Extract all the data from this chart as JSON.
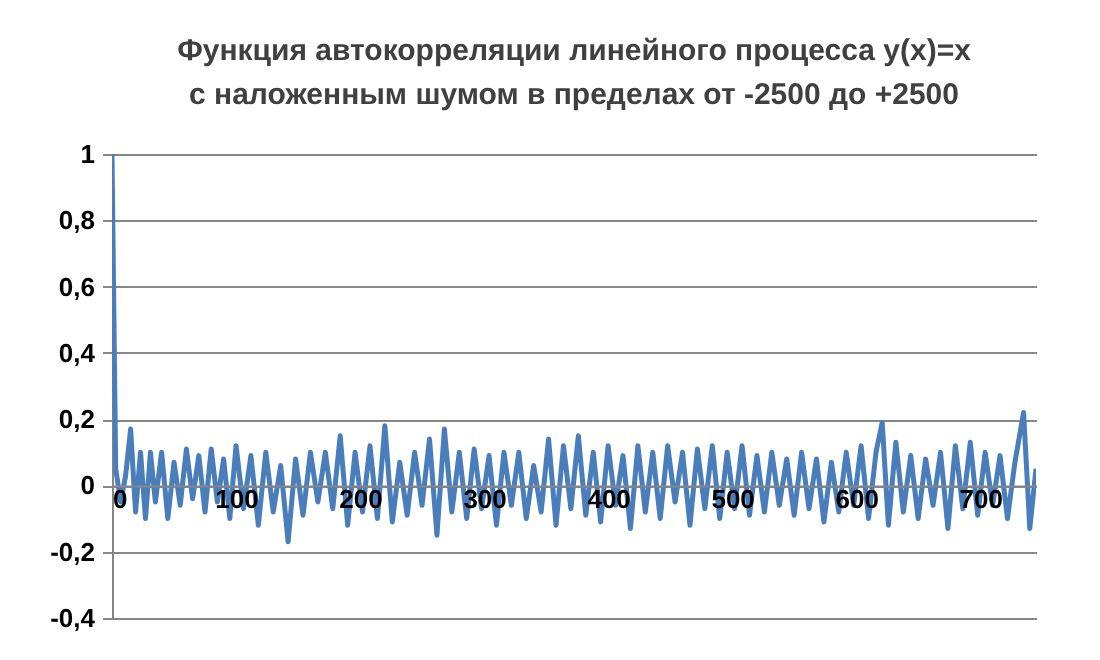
{
  "chart_data": {
    "type": "line",
    "title": "Функция автокорреляции линейного процесса y(x)=x\nс наложенным шумом в пределах от -2500 до +2500",
    "x": [
      0,
      3,
      7,
      11,
      15,
      19,
      23,
      27,
      31,
      35,
      40,
      45,
      50,
      55,
      60,
      65,
      70,
      75,
      80,
      85,
      90,
      95,
      100,
      106,
      112,
      118,
      124,
      130,
      136,
      142,
      148,
      154,
      160,
      166,
      172,
      178,
      184,
      190,
      196,
      202,
      208,
      214,
      220,
      226,
      232,
      238,
      244,
      250,
      256,
      262,
      268,
      274,
      280,
      286,
      292,
      298,
      304,
      310,
      316,
      322,
      328,
      334,
      340,
      346,
      352,
      358,
      364,
      370,
      376,
      382,
      388,
      394,
      400,
      406,
      412,
      418,
      424,
      430,
      436,
      442,
      448,
      454,
      460,
      466,
      472,
      478,
      484,
      490,
      496,
      502,
      508,
      514,
      520,
      526,
      532,
      538,
      544,
      550,
      556,
      562,
      568,
      574,
      580,
      586,
      592,
      598,
      604,
      610,
      616,
      621,
      626,
      632,
      638,
      644,
      650,
      656,
      662,
      668,
      674,
      680,
      686,
      692,
      698,
      704,
      710,
      716,
      722,
      728,
      735,
      740,
      745
    ],
    "series": [
      {
        "color": "#4a7ebb",
        "values": [
          1,
          0.05,
          -0.05,
          0.03,
          0.17,
          -0.08,
          0.1,
          -0.1,
          0.1,
          -0.05,
          0.1,
          -0.1,
          0.07,
          -0.06,
          0.11,
          -0.04,
          0.09,
          -0.08,
          0.11,
          -0.05,
          0.08,
          -0.1,
          0.12,
          -0.07,
          0.09,
          -0.12,
          0.1,
          -0.08,
          0.06,
          -0.17,
          0.08,
          -0.09,
          0.1,
          -0.05,
          0.1,
          -0.07,
          0.15,
          -0.12,
          0.1,
          -0.08,
          0.12,
          -0.1,
          0.18,
          -0.11,
          0.07,
          -0.09,
          0.1,
          -0.06,
          0.14,
          -0.15,
          0.17,
          -0.08,
          0.1,
          -0.1,
          0.11,
          -0.07,
          0.09,
          -0.12,
          0.1,
          -0.06,
          0.1,
          -0.1,
          0.06,
          -0.08,
          0.14,
          -0.12,
          0.12,
          -0.07,
          0.15,
          -0.09,
          0.1,
          -0.11,
          0.12,
          -0.06,
          0.09,
          -0.13,
          0.12,
          -0.08,
          0.1,
          -0.1,
          0.12,
          -0.05,
          0.1,
          -0.12,
          0.11,
          -0.07,
          0.12,
          -0.1,
          0.1,
          -0.07,
          0.12,
          -0.09,
          0.09,
          -0.08,
          0.1,
          -0.06,
          0.08,
          -0.09,
          0.1,
          -0.07,
          0.08,
          -0.11,
          0.07,
          -0.08,
          0.1,
          -0.06,
          0.12,
          -0.1,
          0.1,
          0.19,
          -0.12,
          0.13,
          -0.08,
          0.09,
          -0.1,
          0.08,
          -0.06,
          0.1,
          -0.13,
          0.12,
          -0.07,
          0.13,
          -0.09,
          0.1,
          -0.06,
          0.09,
          -0.1,
          0.07,
          0.22,
          -0.13,
          0.05
        ]
      }
    ],
    "xlim": [
      0,
      745
    ],
    "xticks": [
      0,
      100,
      200,
      300,
      400,
      500,
      600,
      700
    ],
    "ylim": [
      -0.4,
      1
    ],
    "yticks": [
      {
        "value": -0.4,
        "label": "-0,4"
      },
      {
        "value": -0.2,
        "label": "-0,2"
      },
      0,
      {
        "value": 0.2,
        "label": "0,2"
      },
      {
        "value": 0.4,
        "label": "0,4"
      },
      {
        "value": 0.6,
        "label": "0,6"
      },
      {
        "value": 0.8,
        "label": "0,8"
      },
      1
    ],
    "grid": "y",
    "marker": "none",
    "line_style": "solid"
  }
}
